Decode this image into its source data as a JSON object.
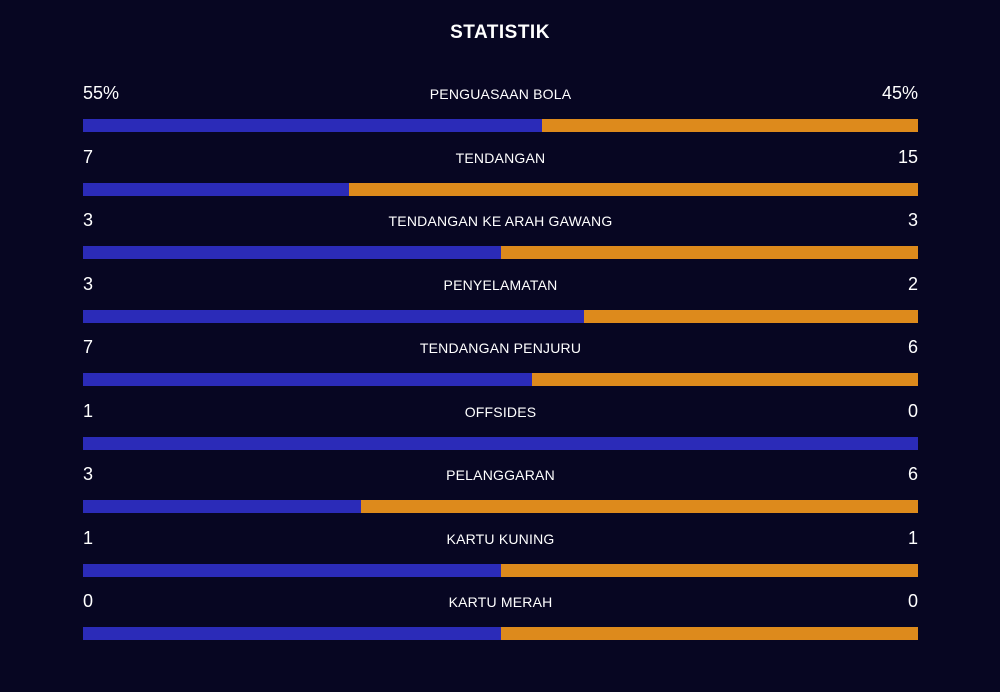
{
  "title": "STATISTIK",
  "colors": {
    "background": "#070622",
    "home": "#2b2bb8",
    "away": "#dd8a1c"
  },
  "stats": [
    {
      "label": "PENGUASAAN BOLA",
      "left": "55%",
      "right": "45%",
      "home_share": 0.55
    },
    {
      "label": "TENDANGAN",
      "left": "7",
      "right": "15",
      "home_share": 0.318
    },
    {
      "label": "TENDANGAN KE ARAH GAWANG",
      "left": "3",
      "right": "3",
      "home_share": 0.5
    },
    {
      "label": "PENYELAMATAN",
      "left": "3",
      "right": "2",
      "home_share": 0.6
    },
    {
      "label": "TENDANGAN PENJURU",
      "left": "7",
      "right": "6",
      "home_share": 0.538
    },
    {
      "label": "OFFSIDES",
      "left": "1",
      "right": "0",
      "home_share": 1.0
    },
    {
      "label": "PELANGGARAN",
      "left": "3",
      "right": "6",
      "home_share": 0.333
    },
    {
      "label": "KARTU KUNING",
      "left": "1",
      "right": "1",
      "home_share": 0.5
    },
    {
      "label": "KARTU MERAH",
      "left": "0",
      "right": "0",
      "home_share": 0.5
    }
  ]
}
